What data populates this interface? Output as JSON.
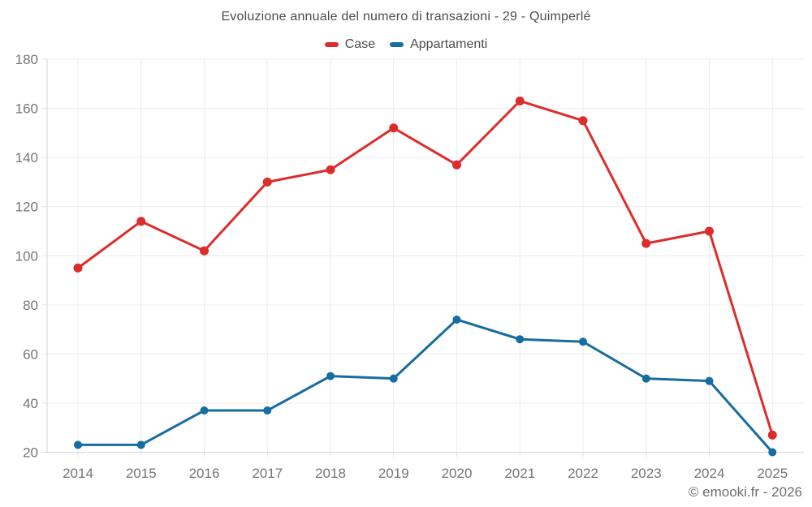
{
  "chart_data": {
    "type": "line",
    "title": "Evoluzione annuale del numero di transazioni - 29 - Quimperlé",
    "categories": [
      "2014",
      "2015",
      "2016",
      "2017",
      "2018",
      "2019",
      "2020",
      "2021",
      "2022",
      "2023",
      "2024",
      "2025"
    ],
    "series": [
      {
        "name": "Case",
        "color": "#dd2c2c",
        "marker_radius": 5.5,
        "values": [
          95,
          114,
          102,
          130,
          135,
          152,
          137,
          163,
          155,
          105,
          110,
          27
        ]
      },
      {
        "name": "Appartamenti",
        "color": "#176ca0",
        "marker_radius": 5,
        "values": [
          23,
          23,
          37,
          37,
          51,
          50,
          74,
          66,
          65,
          50,
          49,
          20
        ]
      }
    ],
    "xlabel": "",
    "ylabel": "",
    "ylim": [
      20,
      180
    ],
    "ytick_step": 20,
    "grid": true,
    "legend_position": "top"
  },
  "footer": {
    "copyright": "© emooki.fr - 2026"
  }
}
